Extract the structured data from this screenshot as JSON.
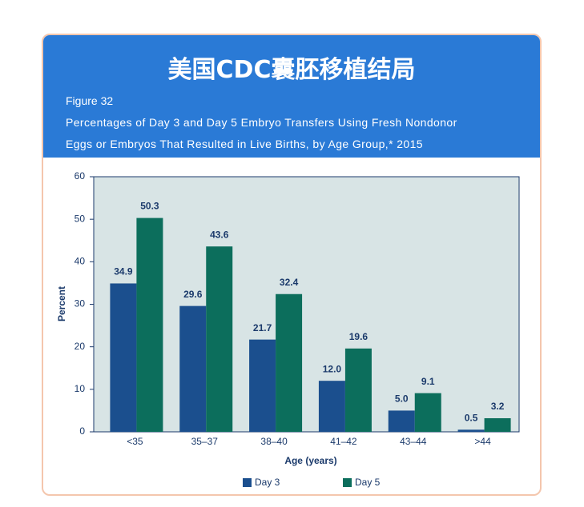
{
  "header": {
    "title": "美国CDC囊胚移植结局",
    "figure": "Figure 32",
    "subtitle_lines": [
      "Percentages of Day 3 and Day 5 Embryo Transfers Using Fresh Nondonor",
      "Eggs or Embryos That Resulted in Live Births, by Age Group,* 2015"
    ]
  },
  "chart_data": {
    "type": "bar",
    "x_label": "Age (years)",
    "y_label": "Percent",
    "categories": [
      "<35",
      "35–37",
      "38–40",
      "41–42",
      "43–44",
      ">44"
    ],
    "series": [
      {
        "name": "Day 3",
        "color": "#1b4f8e",
        "values": [
          34.9,
          29.6,
          21.7,
          12.0,
          5.0,
          0.5
        ],
        "value_labels": [
          "34.9",
          "29.6",
          "21.7",
          "12.0",
          "5.0",
          "0.5"
        ]
      },
      {
        "name": "Day 5",
        "color": "#0c6e5c",
        "values": [
          50.3,
          43.6,
          32.4,
          19.6,
          9.1,
          3.2
        ],
        "value_labels": [
          "50.3",
          "43.6",
          "32.4",
          "19.6",
          "9.1",
          "3.2"
        ]
      }
    ],
    "ylim": [
      0,
      60
    ],
    "yticks": [
      0,
      10,
      20,
      30,
      40,
      50,
      60
    ],
    "legend": "bottom"
  }
}
